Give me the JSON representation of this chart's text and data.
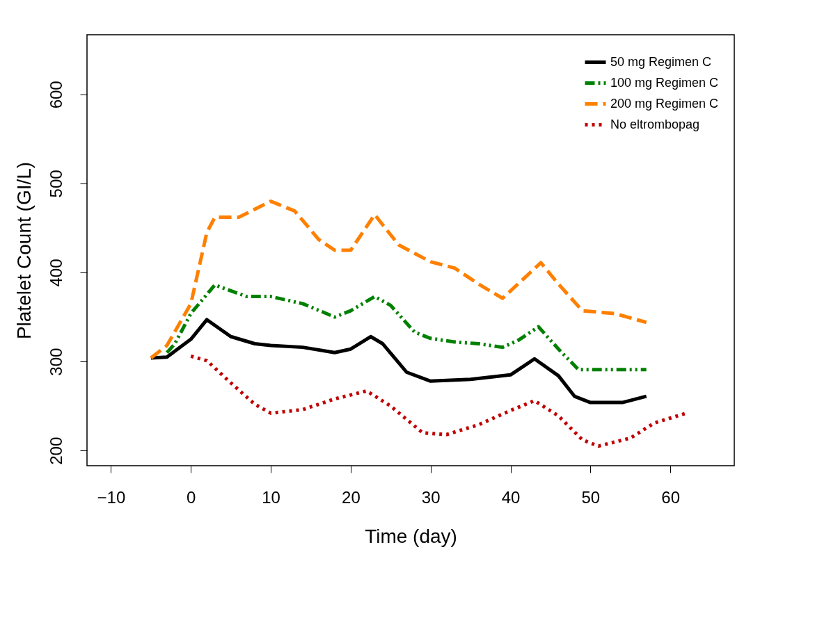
{
  "chart_data": {
    "type": "line",
    "xlabel": "Time (day)",
    "ylabel": "Platelet Count (GI/L)",
    "xlim": [
      -13,
      68
    ],
    "xticks": [
      -10,
      0,
      10,
      20,
      30,
      40,
      50,
      60
    ],
    "ylim": [
      183,
      667
    ],
    "yticks": [
      200,
      300,
      400,
      500,
      600
    ],
    "grid": false,
    "legend": "top right",
    "marker": "none",
    "series": [
      {
        "name": "50 mg Regimen C",
        "color": "#000000",
        "line_style": "solid",
        "x": [
          -5,
          -3,
          0,
          2,
          5,
          8,
          10,
          14,
          18,
          20,
          22.5,
          24,
          27,
          30,
          35,
          40,
          43,
          46,
          48,
          50,
          54,
          57
        ],
        "values": [
          304,
          305,
          325,
          347,
          328,
          320,
          318,
          316,
          310,
          314,
          328,
          320,
          288,
          278,
          280,
          285,
          303,
          284,
          261,
          254,
          254,
          261
        ]
      },
      {
        "name": "100 mg Regimen C",
        "color": "#008000",
        "line_style": "dotdash",
        "x": [
          -3,
          -2,
          0,
          3,
          7,
          10,
          14,
          18,
          20,
          23,
          25,
          28,
          30,
          33,
          36,
          39,
          41,
          43.5,
          46,
          48.5,
          53,
          57
        ],
        "values": [
          310,
          320,
          354,
          386,
          373,
          373,
          365,
          350,
          357,
          373,
          363,
          333,
          326,
          322,
          320,
          316,
          324,
          339,
          314,
          291,
          291,
          291
        ]
      },
      {
        "name": "200 mg Regimen C",
        "color": "#ff8000",
        "line_style": "dashed",
        "x": [
          -5,
          -3,
          0,
          2,
          3,
          6,
          10,
          13,
          16,
          18,
          20,
          23,
          26,
          30,
          33,
          36,
          39,
          43.8,
          46,
          49,
          53,
          57
        ],
        "values": [
          304,
          318,
          365,
          445,
          462,
          462,
          480,
          469,
          437,
          425,
          425,
          465,
          431,
          412,
          405,
          387,
          371,
          411,
          387,
          357,
          354,
          344
        ]
      },
      {
        "name": "No eltrombopag",
        "color": "#c00000",
        "line_style": "dotted",
        "x": [
          0,
          2,
          5,
          8,
          10,
          14,
          18,
          22,
          25,
          29,
          32,
          36,
          40,
          43,
          46,
          49,
          51,
          55,
          58,
          62
        ],
        "values": [
          306,
          301,
          276,
          252,
          242,
          246,
          258,
          267,
          250,
          220,
          218,
          229,
          245,
          256,
          239,
          212,
          205,
          214,
          231,
          242
        ]
      }
    ]
  }
}
